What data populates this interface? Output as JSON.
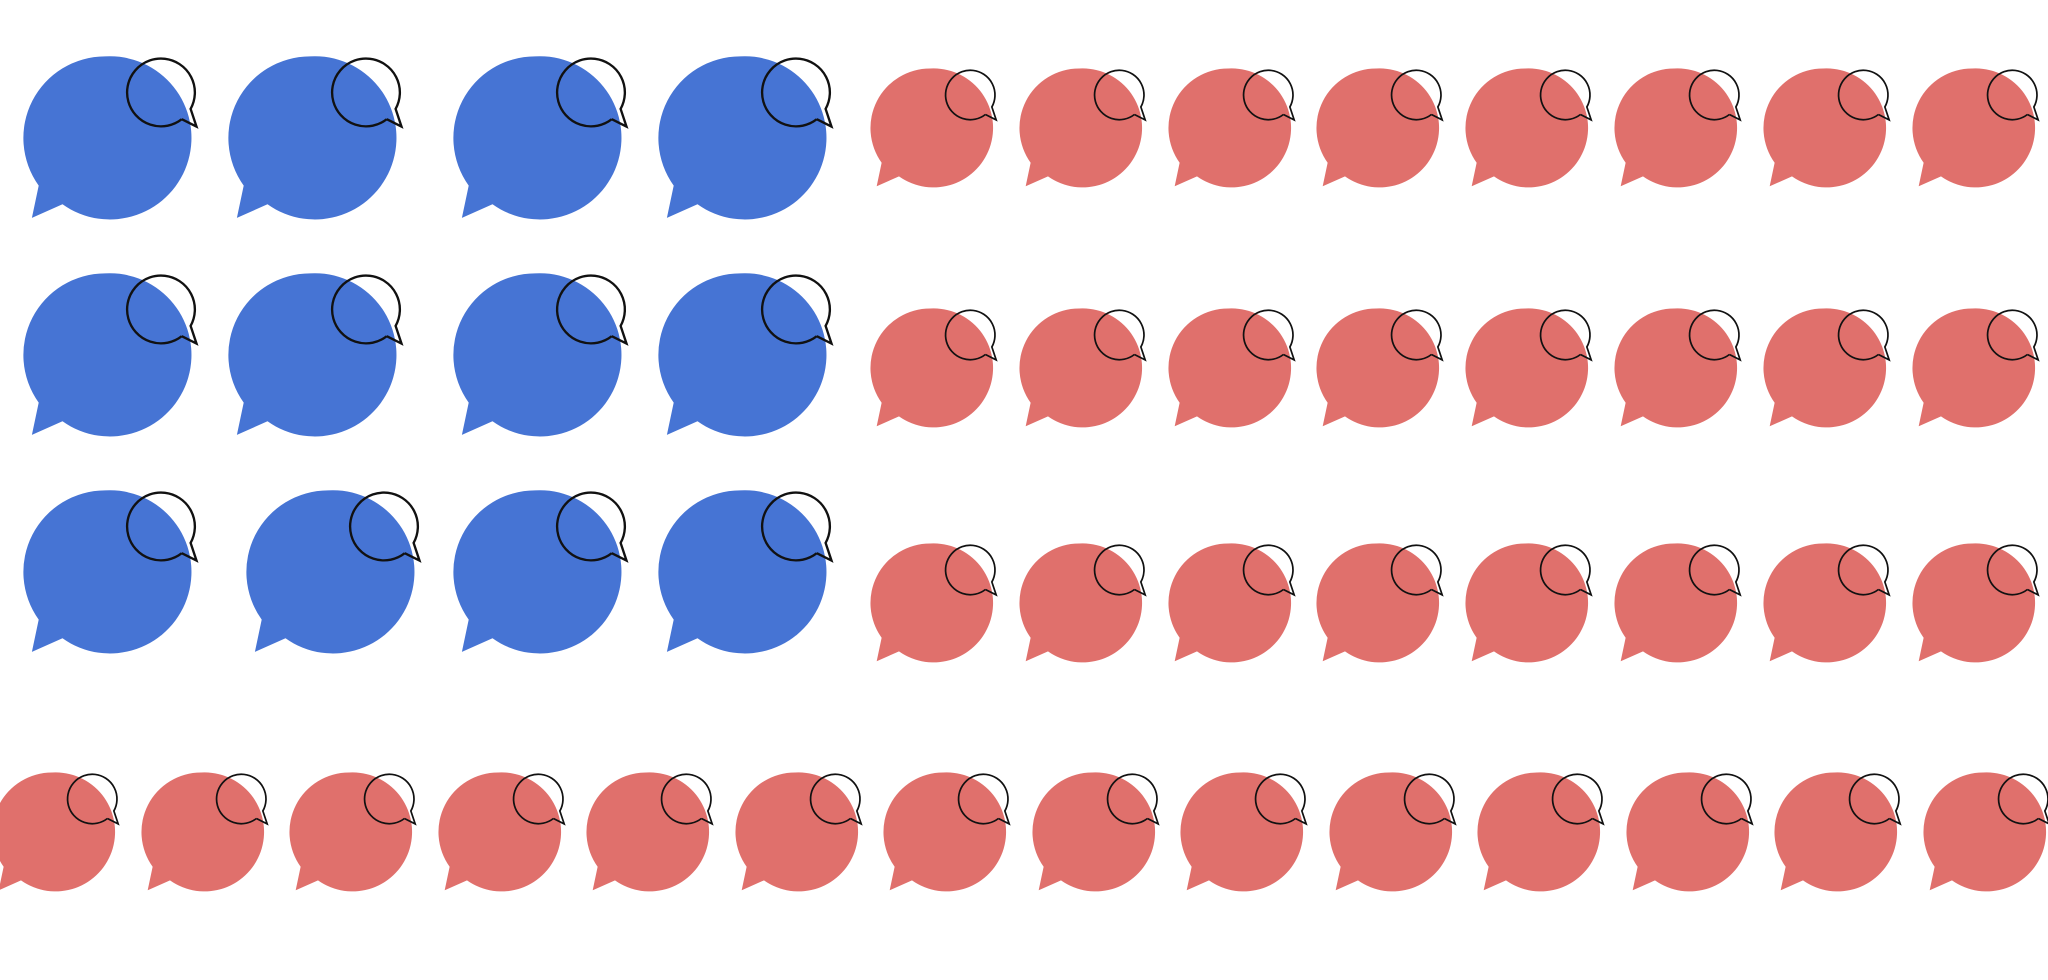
{
  "colors": {
    "blue": "#4674d4",
    "red": "#e0706c",
    "outline": "#111111",
    "background": "#ffffff"
  },
  "icon": "speech-bubble-icon",
  "groups": [
    {
      "name": "blue-block",
      "color": "blue",
      "rows": 3,
      "per_row": 4
    },
    {
      "name": "red-block",
      "color": "red",
      "rows": 3,
      "per_row": 8
    },
    {
      "name": "red-strip",
      "color": "red",
      "rows": 1,
      "per_row": 14
    }
  ]
}
